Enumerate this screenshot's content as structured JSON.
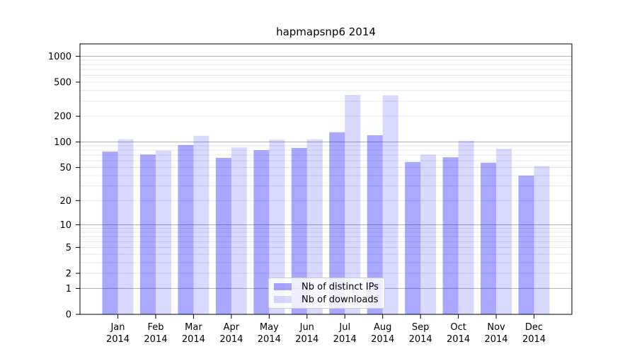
{
  "title": "hapmapsnp6 2014",
  "chart_data": {
    "type": "bar",
    "title": "hapmapsnp6 2014",
    "categories": [
      "Jan 2014",
      "Feb 2014",
      "Mar 2014",
      "Apr 2014",
      "May 2014",
      "Jun 2014",
      "Jul 2014",
      "Aug 2014",
      "Sep 2014",
      "Oct 2014",
      "Nov 2014",
      "Dec 2014"
    ],
    "series": [
      {
        "name": "Nb of distinct IPs",
        "color": "#0000ff",
        "alpha": 0.34,
        "values": [
          77,
          71,
          92,
          65,
          80,
          85,
          130,
          120,
          58,
          66,
          57,
          40
        ]
      },
      {
        "name": "Nb of downloads",
        "color": "#0000ff",
        "alpha": 0.15,
        "values": [
          107,
          79,
          118,
          86,
          106,
          107,
          355,
          350,
          71,
          103,
          83,
          52
        ]
      }
    ],
    "yscale": "log10(value+1)",
    "yticks": [
      0,
      1,
      2,
      5,
      10,
      20,
      50,
      100,
      200,
      500,
      1000
    ],
    "ylim": [
      0,
      1390
    ],
    "xlabel": "",
    "ylabel": "",
    "grid": true,
    "grid_major_color": "#b0b0b0",
    "grid_minor_color": "#e6e6e6",
    "axis_color": "#000000",
    "legend_position": "lower center"
  }
}
